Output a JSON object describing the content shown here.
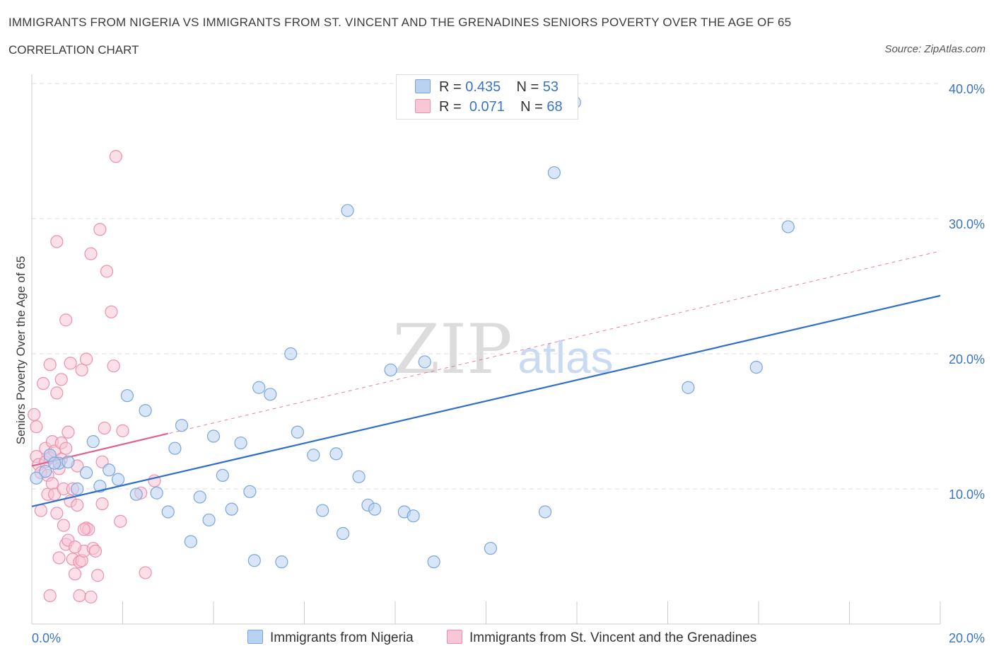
{
  "title": "IMMIGRANTS FROM NIGERIA VS IMMIGRANTS FROM ST. VINCENT AND THE GRENADINES SENIORS POVERTY OVER THE AGE OF 65",
  "subtitle": "CORRELATION CHART",
  "source": "Source: ZipAtlas.com",
  "watermark": {
    "zip": "ZIP",
    "atlas": "atlas"
  },
  "legend": {
    "r_label": "R =",
    "n_label": "N =",
    "items": [
      {
        "r": "0.435",
        "n": "53"
      },
      {
        "r": "0.071",
        "n": "68"
      }
    ]
  },
  "colors": {
    "blue_fill": "#b9d2f2",
    "blue_stroke": "#7aa6dc",
    "blue_line": "#2f6fcc",
    "pink_fill": "#f8c7d6",
    "pink_stroke": "#ee8fae",
    "pink_line": "#e0608e",
    "axis_text": "#3a74c4",
    "grid": "#dddddd"
  },
  "chart_data": {
    "type": "scatter",
    "title": "IMMIGRANTS FROM NIGERIA VS IMMIGRANTS FROM ST. VINCENT AND THE GRENADINES SENIORS POVERTY OVER THE AGE OF 65",
    "xlabel": "",
    "ylabel": "Seniors Poverty Over the Age of 65",
    "xlim": [
      0,
      20
    ],
    "ylim": [
      0,
      40
    ],
    "x_tick_labels": [
      "0.0%",
      "20.0%"
    ],
    "y_ticks": [
      10,
      20,
      30,
      40
    ],
    "y_tick_labels": [
      "10.0%",
      "20.0%",
      "30.0%",
      "40.0%"
    ],
    "grid": true,
    "series": [
      {
        "name": "Immigrants from Nigeria",
        "color": "#7aa6dc",
        "r": 0.435,
        "n": 53,
        "trend": {
          "x0": 0.0,
          "y0": 8.7,
          "x1": 20.0,
          "y1": 24.3
        },
        "points": [
          [
            0.1,
            10.8
          ],
          [
            0.3,
            11.3
          ],
          [
            0.4,
            12.5
          ],
          [
            0.6,
            11.9
          ],
          [
            0.8,
            12.0
          ],
          [
            1.0,
            10.0
          ],
          [
            1.2,
            11.2
          ],
          [
            1.35,
            13.5
          ],
          [
            1.5,
            10.2
          ],
          [
            1.7,
            11.4
          ],
          [
            1.9,
            10.7
          ],
          [
            2.1,
            16.9
          ],
          [
            2.3,
            9.6
          ],
          [
            2.5,
            15.8
          ],
          [
            2.75,
            9.7
          ],
          [
            3.0,
            8.3
          ],
          [
            3.15,
            13.0
          ],
          [
            3.3,
            14.7
          ],
          [
            3.5,
            6.1
          ],
          [
            3.7,
            9.4
          ],
          [
            3.9,
            7.7
          ],
          [
            4.0,
            13.9
          ],
          [
            4.2,
            11.0
          ],
          [
            4.4,
            8.5
          ],
          [
            4.6,
            13.4
          ],
          [
            4.8,
            9.8
          ],
          [
            4.9,
            4.7
          ],
          [
            5.0,
            17.5
          ],
          [
            5.25,
            17.0
          ],
          [
            5.5,
            4.6
          ],
          [
            5.7,
            20.0
          ],
          [
            5.85,
            14.2
          ],
          [
            6.2,
            12.5
          ],
          [
            6.4,
            8.4
          ],
          [
            6.7,
            12.6
          ],
          [
            6.85,
            6.7
          ],
          [
            6.95,
            30.6
          ],
          [
            7.2,
            10.9
          ],
          [
            7.4,
            8.8
          ],
          [
            7.55,
            8.5
          ],
          [
            7.9,
            18.8
          ],
          [
            8.2,
            8.3
          ],
          [
            8.4,
            8.0
          ],
          [
            8.65,
            19.4
          ],
          [
            8.85,
            4.6
          ],
          [
            10.1,
            5.6
          ],
          [
            11.3,
            8.3
          ],
          [
            11.5,
            33.4
          ],
          [
            11.95,
            38.6
          ],
          [
            14.45,
            17.5
          ],
          [
            15.95,
            19.0
          ],
          [
            16.65,
            29.4
          ],
          [
            0.5,
            11.9
          ]
        ]
      },
      {
        "name": "Immigrants from St. Vincent and the Grenadines",
        "color": "#ee8fae",
        "r": 0.071,
        "n": 68,
        "trend": {
          "x0": 0.0,
          "y0": 11.7,
          "x1": 3.0,
          "y1": 14.1
        },
        "trend_dashed": {
          "x0": 0.0,
          "y0": 11.7,
          "x1": 20.0,
          "y1": 27.6
        },
        "points": [
          [
            0.05,
            15.5
          ],
          [
            0.1,
            14.6
          ],
          [
            0.1,
            12.4
          ],
          [
            0.15,
            11.8
          ],
          [
            0.2,
            11.2
          ],
          [
            0.2,
            8.4
          ],
          [
            0.25,
            17.8
          ],
          [
            0.3,
            13.0
          ],
          [
            0.3,
            12.0
          ],
          [
            0.35,
            9.6
          ],
          [
            0.35,
            11.0
          ],
          [
            0.4,
            19.2
          ],
          [
            0.4,
            12.3
          ],
          [
            0.45,
            10.4
          ],
          [
            0.45,
            13.5
          ],
          [
            0.5,
            12.8
          ],
          [
            0.5,
            9.6
          ],
          [
            0.55,
            17.1
          ],
          [
            0.55,
            8.2
          ],
          [
            0.6,
            4.9
          ],
          [
            0.6,
            11.5
          ],
          [
            0.65,
            18.1
          ],
          [
            0.65,
            13.4
          ],
          [
            0.7,
            10.0
          ],
          [
            0.7,
            7.3
          ],
          [
            0.75,
            22.5
          ],
          [
            0.75,
            5.9
          ],
          [
            0.8,
            6.2
          ],
          [
            0.8,
            14.2
          ],
          [
            0.85,
            19.3
          ],
          [
            0.85,
            9.1
          ],
          [
            0.9,
            10.0
          ],
          [
            0.9,
            4.8
          ],
          [
            0.95,
            3.7
          ],
          [
            1.0,
            11.7
          ],
          [
            1.0,
            8.8
          ],
          [
            1.05,
            4.6
          ],
          [
            1.1,
            4.7
          ],
          [
            1.1,
            18.8
          ],
          [
            1.15,
            5.4
          ],
          [
            1.2,
            19.6
          ],
          [
            1.2,
            7.1
          ],
          [
            1.25,
            7.0
          ],
          [
            1.3,
            27.4
          ],
          [
            1.35,
            5.6
          ],
          [
            1.4,
            5.4
          ],
          [
            1.45,
            3.6
          ],
          [
            1.5,
            29.2
          ],
          [
            1.55,
            12.0
          ],
          [
            1.55,
            8.9
          ],
          [
            1.6,
            14.5
          ],
          [
            1.65,
            26.1
          ],
          [
            1.75,
            23.1
          ],
          [
            1.8,
            19.1
          ],
          [
            1.85,
            34.6
          ],
          [
            1.95,
            7.6
          ],
          [
            2.0,
            14.3
          ],
          [
            2.4,
            9.7
          ],
          [
            2.5,
            3.8
          ],
          [
            2.7,
            10.6
          ],
          [
            0.55,
            28.3
          ],
          [
            0.65,
            12.2
          ],
          [
            0.75,
            13.0
          ],
          [
            0.95,
            5.7
          ],
          [
            1.05,
            2.1
          ],
          [
            1.15,
            7.0
          ],
          [
            1.3,
            2.0
          ],
          [
            0.4,
            2.1
          ]
        ]
      }
    ]
  }
}
